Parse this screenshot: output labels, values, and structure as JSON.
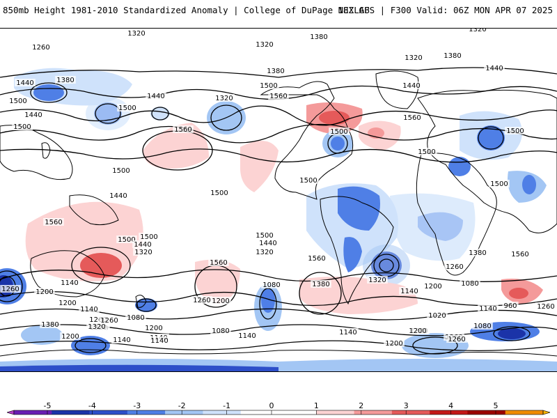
{
  "header": {
    "title_left": "850mb Height 1981-2010 Standardized Anomaly | College of DuPage NEXLAB",
    "title_right": "18Z GFS | F300 Valid: 06Z MON APR 07 2025"
  },
  "colors": {
    "ocean": "#ffffff",
    "coast": "#000000",
    "contour": "#000000",
    "pos_1": "#fcd3d3",
    "pos_2": "#f49a9a",
    "pos_3": "#e55a5a",
    "neg_1": "#cfe2fb",
    "neg_2": "#a3c6f4",
    "neg_3": "#4f7fe6",
    "neg_4": "#2d4fc9"
  },
  "contour_labels": [
    {
      "text": "1320"
    },
    {
      "text": "1260"
    },
    {
      "text": "1380"
    },
    {
      "text": "1320"
    },
    {
      "text": "1380"
    },
    {
      "text": "1440"
    },
    {
      "text": "1440"
    },
    {
      "text": "1320"
    },
    {
      "text": "1500"
    },
    {
      "text": "1500"
    },
    {
      "text": "1560"
    },
    {
      "text": "1500"
    },
    {
      "text": "1440"
    },
    {
      "text": "1500"
    },
    {
      "text": "1560"
    },
    {
      "text": "1380"
    },
    {
      "text": "1320"
    },
    {
      "text": "1320"
    },
    {
      "text": "1380"
    },
    {
      "text": "1440"
    },
    {
      "text": "1560"
    },
    {
      "text": "1440"
    },
    {
      "text": "1500"
    },
    {
      "text": "1500"
    },
    {
      "text": "1500"
    },
    {
      "text": "1500"
    },
    {
      "text": "1500"
    },
    {
      "text": "1500"
    },
    {
      "text": "1560"
    },
    {
      "text": "1500"
    },
    {
      "text": "1560"
    },
    {
      "text": "1500"
    },
    {
      "text": "1440"
    },
    {
      "text": "1380"
    },
    {
      "text": "1560"
    },
    {
      "text": "1500"
    },
    {
      "text": "1440"
    },
    {
      "text": "1320"
    },
    {
      "text": "1560"
    },
    {
      "text": "1500"
    },
    {
      "text": "1440"
    },
    {
      "text": "1320"
    },
    {
      "text": "1260"
    },
    {
      "text": "1200"
    },
    {
      "text": "1140"
    },
    {
      "text": "1080"
    },
    {
      "text": "1140"
    },
    {
      "text": "1260"
    },
    {
      "text": "1200"
    },
    {
      "text": "1380"
    },
    {
      "text": "1320"
    },
    {
      "text": "1260"
    },
    {
      "text": "1140"
    },
    {
      "text": "1200"
    },
    {
      "text": "1080"
    },
    {
      "text": "1140"
    },
    {
      "text": "960"
    },
    {
      "text": "1260"
    },
    {
      "text": "1020"
    },
    {
      "text": "1080"
    },
    {
      "text": "1200"
    },
    {
      "text": "1260"
    },
    {
      "text": "1200"
    },
    {
      "text": "1140"
    },
    {
      "text": "1080"
    },
    {
      "text": "1140"
    },
    {
      "text": "1260"
    },
    {
      "text": "1320"
    },
    {
      "text": "1200"
    },
    {
      "text": "1140"
    },
    {
      "text": "1080"
    },
    {
      "text": "1260"
    },
    {
      "text": "1380"
    },
    {
      "text": "1200"
    },
    {
      "text": "1140"
    },
    {
      "text": "1140"
    },
    {
      "text": "1200"
    },
    {
      "text": "1260"
    },
    {
      "text": "1140"
    },
    {
      "text": "1200"
    },
    {
      "text": "1320"
    }
  ],
  "colorbar": {
    "ticks": [
      "-5",
      "-4",
      "-3",
      "-2",
      "-1",
      "0",
      "1",
      "2",
      "3",
      "4",
      "5"
    ],
    "segments": [
      {
        "color": "#b43cc8"
      },
      {
        "color": "#6a1fb3"
      },
      {
        "color": "#1b33a8"
      },
      {
        "color": "#2d4fc9"
      },
      {
        "color": "#4f7fe6"
      },
      {
        "color": "#a3c6f4"
      },
      {
        "color": "#cfe2fb"
      },
      {
        "color": "#ffffff"
      },
      {
        "color": "#ffffff"
      },
      {
        "color": "#fcd3d3"
      },
      {
        "color": "#f49a9a"
      },
      {
        "color": "#e55a5a"
      },
      {
        "color": "#c41818"
      },
      {
        "color": "#9b0000"
      },
      {
        "color": "#f08c00"
      },
      {
        "color": "#f5b400"
      }
    ]
  }
}
